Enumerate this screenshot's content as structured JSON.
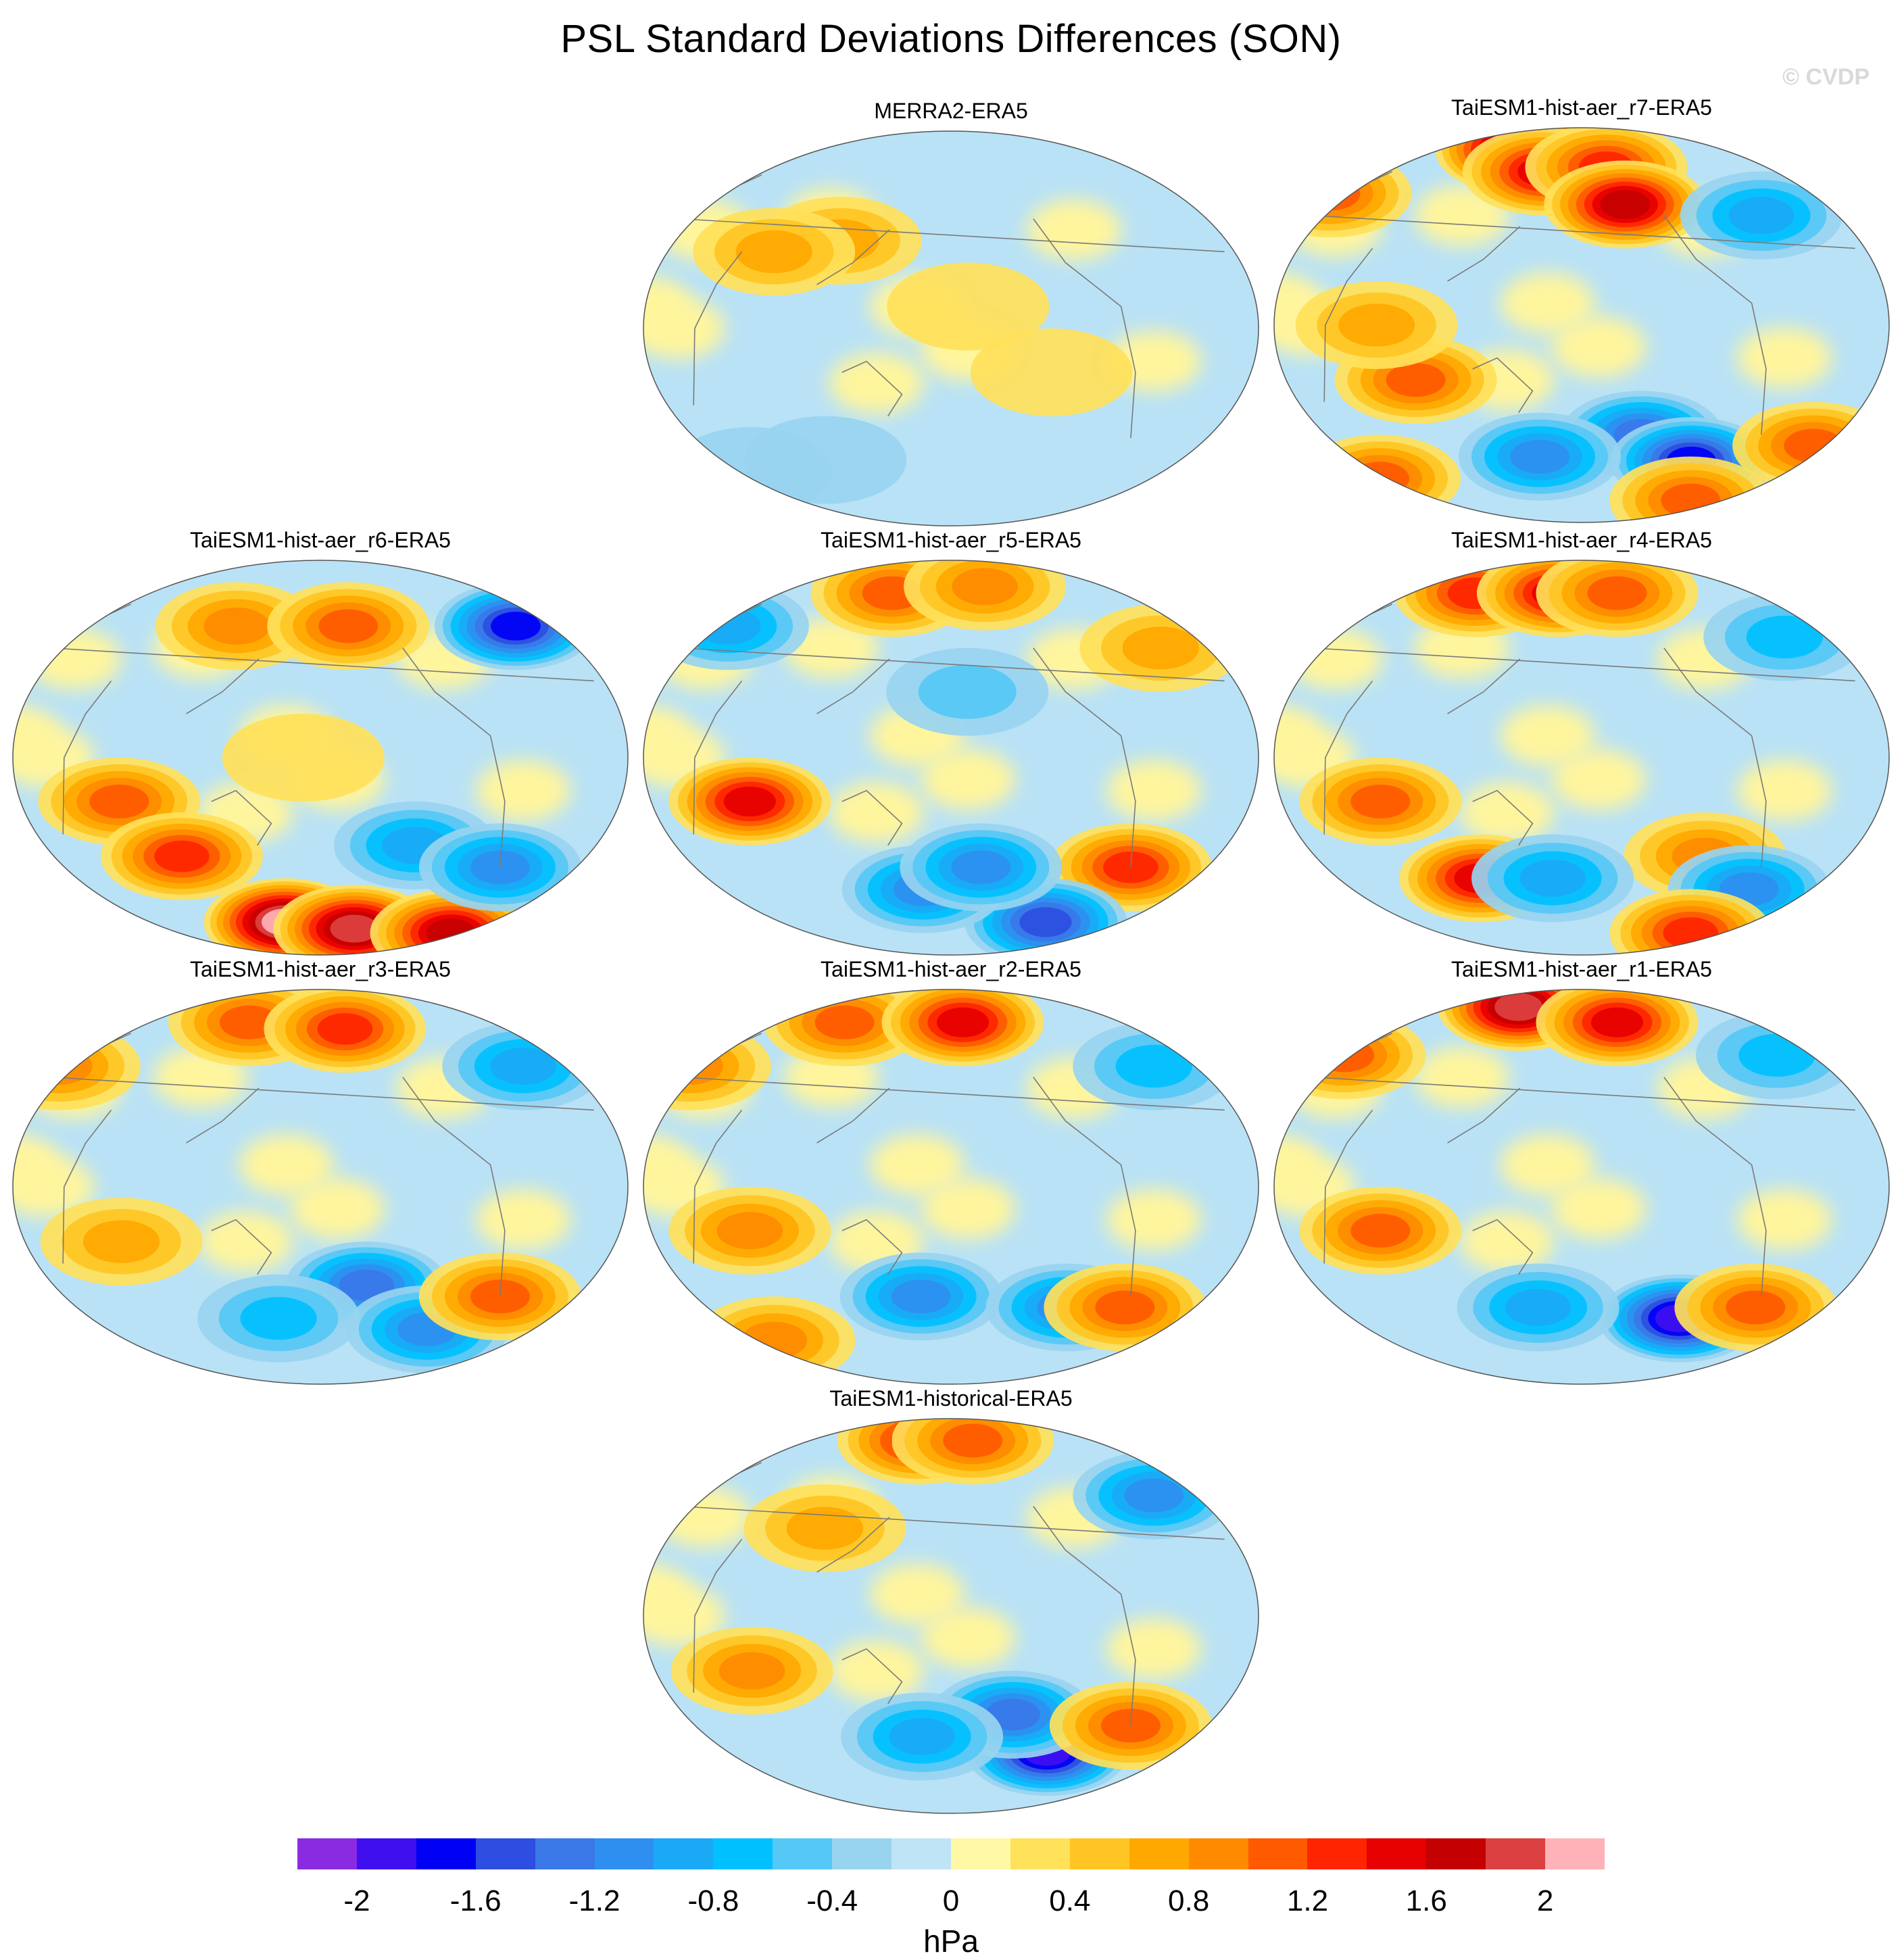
{
  "figure": {
    "title": "PSL Standard Deviations Differences (SON)",
    "watermark": "© CVDP",
    "units": "hPa"
  },
  "colors": {
    "ocean_neutral": "#b9e2f6",
    "land_neutral": "#fff59d",
    "coastline": "#7a7a7a",
    "border": "#555555"
  },
  "panels": [
    {
      "id": "merra2",
      "title": "MERRA2-ERA5",
      "blobs": [
        {
          "lon": 110,
          "lat": 40,
          "value": 0.6
        },
        {
          "lon": 70,
          "lat": 35,
          "value": 0.5
        },
        {
          "lon": -170,
          "lat": 10,
          "value": 0.3
        },
        {
          "lon": -120,
          "lat": -20,
          "value": 0.2
        },
        {
          "lon": 30,
          "lat": -65,
          "value": -0.3
        },
        {
          "lon": 90,
          "lat": -60,
          "value": -0.2
        }
      ]
    },
    {
      "id": "r7",
      "title": "TaiESM1-hist-aer_r7-ERA5",
      "blobs": [
        {
          "lon": 120,
          "lat": 80,
          "value": 1.8
        },
        {
          "lon": 150,
          "lat": 70,
          "value": 1.4
        },
        {
          "lon": -160,
          "lat": 72,
          "value": 1.2
        },
        {
          "lon": -150,
          "lat": 55,
          "value": 1.6
        },
        {
          "lon": 80,
          "lat": -25,
          "value": 1.0
        },
        {
          "lon": 60,
          "lat": 0,
          "value": 0.7
        },
        {
          "lon": -140,
          "lat": -50,
          "value": -1.2
        },
        {
          "lon": -100,
          "lat": -62,
          "value": -1.6
        },
        {
          "lon": 150,
          "lat": -60,
          "value": -1.0
        },
        {
          "lon": -60,
          "lat": 50,
          "value": -0.8
        },
        {
          "lon": -20,
          "lat": -55,
          "value": 0.9
        },
        {
          "lon": 20,
          "lat": -70,
          "value": 1.0
        },
        {
          "lon": -80,
          "lat": -80,
          "value": 1.0
        },
        {
          "lon": 0,
          "lat": 60,
          "value": 1.0
        }
      ]
    },
    {
      "id": "r6",
      "title": "TaiESM1-hist-aer_r6-ERA5",
      "blobs": [
        {
          "lon": 60,
          "lat": -20,
          "value": 0.9
        },
        {
          "lon": 90,
          "lat": -45,
          "value": 1.2
        },
        {
          "lon": 150,
          "lat": -75,
          "value": 2.0
        },
        {
          "lon": -150,
          "lat": -78,
          "value": 1.8
        },
        {
          "lon": -60,
          "lat": -80,
          "value": 1.6
        },
        {
          "lon": 120,
          "lat": 60,
          "value": 0.8
        },
        {
          "lon": -160,
          "lat": 60,
          "value": 0.9
        },
        {
          "lon": -40,
          "lat": 60,
          "value": -1.6
        },
        {
          "lon": -120,
          "lat": -40,
          "value": -0.8
        },
        {
          "lon": -60,
          "lat": -50,
          "value": -1.0
        },
        {
          "lon": 170,
          "lat": 0,
          "value": 0.3
        }
      ]
    },
    {
      "id": "r5",
      "title": "TaiESM1-hist-aer_r5-ERA5",
      "blobs": [
        {
          "lon": 60,
          "lat": -20,
          "value": 1.4
        },
        {
          "lon": 130,
          "lat": 75,
          "value": 1.0
        },
        {
          "lon": -150,
          "lat": 78,
          "value": 0.8
        },
        {
          "lon": -60,
          "lat": -50,
          "value": 1.2
        },
        {
          "lon": -100,
          "lat": -75,
          "value": -1.4
        },
        {
          "lon": 160,
          "lat": -60,
          "value": -1.0
        },
        {
          "lon": -160,
          "lat": -50,
          "value": -1.0
        },
        {
          "lon": 20,
          "lat": 60,
          "value": -0.8
        },
        {
          "lon": -40,
          "lat": 50,
          "value": 0.7
        },
        {
          "lon": -170,
          "lat": 30,
          "value": -0.4
        }
      ]
    },
    {
      "id": "r4",
      "title": "TaiESM1-hist-aer_r4-ERA5",
      "blobs": [
        {
          "lon": 90,
          "lat": 75,
          "value": 1.2
        },
        {
          "lon": 160,
          "lat": 75,
          "value": 1.3
        },
        {
          "lon": -150,
          "lat": 75,
          "value": 1.0
        },
        {
          "lon": 60,
          "lat": -20,
          "value": 1.0
        },
        {
          "lon": 110,
          "lat": -55,
          "value": 1.4
        },
        {
          "lon": -100,
          "lat": -45,
          "value": 0.8
        },
        {
          "lon": -60,
          "lat": -60,
          "value": -1.0
        },
        {
          "lon": -80,
          "lat": -80,
          "value": 1.2
        },
        {
          "lon": 160,
          "lat": -55,
          "value": -0.8
        },
        {
          "lon": -40,
          "lat": 55,
          "value": -0.6
        }
      ]
    },
    {
      "id": "r3",
      "title": "TaiESM1-hist-aer_r3-ERA5",
      "blobs": [
        {
          "lon": 120,
          "lat": 75,
          "value": 1.0
        },
        {
          "lon": -160,
          "lat": 72,
          "value": 1.1
        },
        {
          "lon": 60,
          "lat": -25,
          "value": 0.6
        },
        {
          "lon": -150,
          "lat": -45,
          "value": -1.2
        },
        {
          "lon": -100,
          "lat": -65,
          "value": -1.0
        },
        {
          "lon": -60,
          "lat": -50,
          "value": 0.9
        },
        {
          "lon": 150,
          "lat": -60,
          "value": -0.6
        },
        {
          "lon": -40,
          "lat": 55,
          "value": -0.8
        },
        {
          "lon": 0,
          "lat": 55,
          "value": 0.8
        }
      ]
    },
    {
      "id": "r2",
      "title": "TaiESM1-hist-aer_r2-ERA5",
      "blobs": [
        {
          "lon": 90,
          "lat": 75,
          "value": 1.0
        },
        {
          "lon": -170,
          "lat": 75,
          "value": 1.4
        },
        {
          "lon": 60,
          "lat": -20,
          "value": 0.8
        },
        {
          "lon": 160,
          "lat": -50,
          "value": -0.9
        },
        {
          "lon": -100,
          "lat": -55,
          "value": -1.0
        },
        {
          "lon": -60,
          "lat": -55,
          "value": 0.9
        },
        {
          "lon": 40,
          "lat": -70,
          "value": 0.8
        },
        {
          "lon": -40,
          "lat": 55,
          "value": -0.6
        },
        {
          "lon": 0,
          "lat": 55,
          "value": 0.8
        }
      ]
    },
    {
      "id": "r1",
      "title": "TaiESM1-hist-aer_r1-ERA5",
      "blobs": [
        {
          "lon": 120,
          "lat": 82,
          "value": 1.8
        },
        {
          "lon": -150,
          "lat": 75,
          "value": 1.3
        },
        {
          "lon": 60,
          "lat": -20,
          "value": 0.9
        },
        {
          "lon": -110,
          "lat": -60,
          "value": -1.8
        },
        {
          "lon": -60,
          "lat": -55,
          "value": 1.0
        },
        {
          "lon": 150,
          "lat": -55,
          "value": -0.8
        },
        {
          "lon": 10,
          "lat": 60,
          "value": 1.0
        },
        {
          "lon": -40,
          "lat": 60,
          "value": -0.6
        }
      ]
    },
    {
      "id": "historical",
      "title": "TaiESM1-historical-ERA5",
      "blobs": [
        {
          "lon": 150,
          "lat": 80,
          "value": 1.2
        },
        {
          "lon": -160,
          "lat": 80,
          "value": 1.0
        },
        {
          "lon": 60,
          "lat": -25,
          "value": 0.8
        },
        {
          "lon": -110,
          "lat": -62,
          "value": -1.9
        },
        {
          "lon": -140,
          "lat": -45,
          "value": -1.2
        },
        {
          "lon": -60,
          "lat": -50,
          "value": 0.9
        },
        {
          "lon": 160,
          "lat": -55,
          "value": -0.8
        },
        {
          "lon": -40,
          "lat": 55,
          "value": -1.0
        },
        {
          "lon": 100,
          "lat": 40,
          "value": 0.6
        }
      ]
    }
  ],
  "colorbar": {
    "colors": [
      "#8a2be2",
      "#3f0ff0",
      "#0000f5",
      "#2d4ee0",
      "#3a78e8",
      "#2e8ff0",
      "#1aaaf5",
      "#00c0ff",
      "#55c8f5",
      "#98d4f0",
      "#bfe4f5",
      "#fff8a6",
      "#ffe15a",
      "#ffc524",
      "#ffa800",
      "#ff8a00",
      "#ff5a00",
      "#ff2500",
      "#e60000",
      "#c40000",
      "#dd4040",
      "#ffb2b8"
    ],
    "labels": [
      "-2",
      "-1.6",
      "-1.2",
      "-0.8",
      "-0.4",
      "0",
      "0.4",
      "0.8",
      "1.2",
      "1.6",
      "2"
    ],
    "min": -2.2,
    "max": 2.2,
    "step": 0.2
  }
}
